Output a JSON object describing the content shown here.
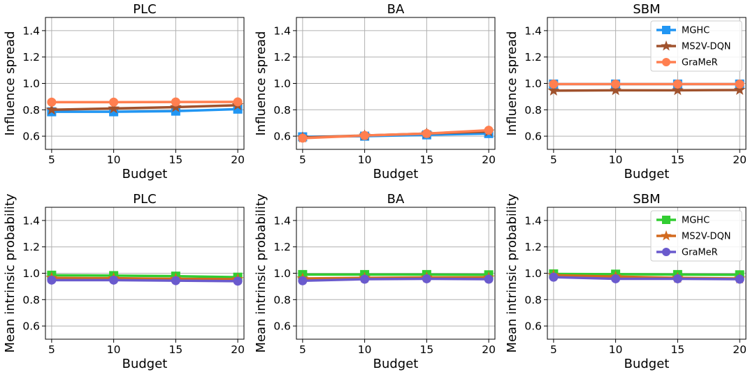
{
  "chart_data": [
    {
      "type": "line",
      "title": "PLC",
      "xlabel": "Budget",
      "ylabel": "Influence spread",
      "x": [
        5,
        10,
        15,
        20
      ],
      "xticks": [
        5,
        10,
        15,
        20
      ],
      "xlim": [
        4.5,
        20.5
      ],
      "ylim": [
        0.5,
        1.5
      ],
      "yticks": [
        "0.6",
        "0.8",
        "1.0",
        "1.2",
        "1.4"
      ],
      "grid": true,
      "legend": null,
      "series": [
        {
          "name": "MGHC",
          "values": [
            0.785,
            0.785,
            0.79,
            0.805
          ],
          "color": "#2196f3",
          "marker": "square"
        },
        {
          "name": "MS2V-DQN",
          "values": [
            0.8,
            0.81,
            0.82,
            0.835
          ],
          "color": "#a0522d",
          "marker": "star"
        },
        {
          "name": "GraMeR",
          "values": [
            0.858,
            0.858,
            0.859,
            0.86
          ],
          "color": "#ff7f50",
          "marker": "circle"
        }
      ]
    },
    {
      "type": "line",
      "title": "BA",
      "xlabel": "Budget",
      "ylabel": "Influence spread",
      "x": [
        5,
        10,
        15,
        20
      ],
      "xticks": [
        5,
        10,
        15,
        20
      ],
      "xlim": [
        4.5,
        20.5
      ],
      "ylim": [
        0.5,
        1.5
      ],
      "yticks": [
        "0.6",
        "0.8",
        "1.0",
        "1.2",
        "1.4"
      ],
      "grid": true,
      "legend": null,
      "series": [
        {
          "name": "MGHC",
          "values": [
            0.595,
            0.6,
            0.61,
            0.62
          ],
          "color": "#2196f3",
          "marker": "square"
        },
        {
          "name": "MS2V-DQN",
          "values": [
            0.59,
            0.605,
            0.62,
            0.635
          ],
          "color": "#a0522d",
          "marker": "star"
        },
        {
          "name": "GraMeR",
          "values": [
            0.585,
            0.605,
            0.62,
            0.645
          ],
          "color": "#ff7f50",
          "marker": "circle"
        }
      ]
    },
    {
      "type": "line",
      "title": "SBM",
      "xlabel": "Budget",
      "ylabel": "Influence spread",
      "x": [
        5,
        10,
        15,
        20
      ],
      "xticks": [
        5,
        10,
        15,
        20
      ],
      "xlim": [
        4.5,
        20.5
      ],
      "ylim": [
        0.5,
        1.5
      ],
      "yticks": [
        "0.6",
        "0.8",
        "1.0",
        "1.2",
        "1.4"
      ],
      "grid": true,
      "legend": "top-right",
      "series": [
        {
          "name": "MGHC",
          "values": [
            0.995,
            0.995,
            0.995,
            0.995
          ],
          "color": "#2196f3",
          "marker": "square"
        },
        {
          "name": "MS2V-DQN",
          "values": [
            0.945,
            0.948,
            0.948,
            0.95
          ],
          "color": "#a0522d",
          "marker": "star"
        },
        {
          "name": "GraMeR",
          "values": [
            0.995,
            0.995,
            0.995,
            0.995
          ],
          "color": "#ff7f50",
          "marker": "circle"
        }
      ]
    },
    {
      "type": "line",
      "title": "PLC",
      "xlabel": "Budget",
      "ylabel": "Mean intrinsic probability",
      "x": [
        5,
        10,
        15,
        20
      ],
      "xticks": [
        5,
        10,
        15,
        20
      ],
      "xlim": [
        4.5,
        20.5
      ],
      "ylim": [
        0.5,
        1.5
      ],
      "yticks": [
        "0.6",
        "0.8",
        "1.0",
        "1.2",
        "1.4"
      ],
      "grid": true,
      "legend": null,
      "series": [
        {
          "name": "MGHC",
          "values": [
            0.985,
            0.982,
            0.978,
            0.97
          ],
          "color": "#32cd32",
          "marker": "square"
        },
        {
          "name": "MS2V-DQN",
          "values": [
            0.965,
            0.962,
            0.958,
            0.955
          ],
          "color": "#d2691e",
          "marker": "star"
        },
        {
          "name": "GraMeR",
          "values": [
            0.948,
            0.948,
            0.944,
            0.94
          ],
          "color": "#6a5acd",
          "marker": "circle"
        }
      ]
    },
    {
      "type": "line",
      "title": "BA",
      "xlabel": "Budget",
      "ylabel": "Mean intrinsic probability",
      "x": [
        5,
        10,
        15,
        20
      ],
      "xticks": [
        5,
        10,
        15,
        20
      ],
      "xlim": [
        4.5,
        20.5
      ],
      "ylim": [
        0.5,
        1.5
      ],
      "yticks": [
        "0.6",
        "0.8",
        "1.0",
        "1.2",
        "1.4"
      ],
      "grid": true,
      "legend": null,
      "series": [
        {
          "name": "MGHC",
          "values": [
            0.99,
            0.99,
            0.99,
            0.988
          ],
          "color": "#32cd32",
          "marker": "square"
        },
        {
          "name": "MS2V-DQN",
          "values": [
            0.96,
            0.965,
            0.968,
            0.968
          ],
          "color": "#d2691e",
          "marker": "star"
        },
        {
          "name": "GraMeR",
          "values": [
            0.943,
            0.955,
            0.958,
            0.955
          ],
          "color": "#6a5acd",
          "marker": "circle"
        }
      ]
    },
    {
      "type": "line",
      "title": "SBM",
      "xlabel": "Budget",
      "ylabel": "Mean intrinsic probability",
      "x": [
        5,
        10,
        15,
        20
      ],
      "xticks": [
        5,
        10,
        15,
        20
      ],
      "xlim": [
        4.5,
        20.5
      ],
      "ylim": [
        0.5,
        1.5
      ],
      "yticks": [
        "0.6",
        "0.8",
        "1.0",
        "1.2",
        "1.4"
      ],
      "grid": true,
      "legend": "top-right",
      "series": [
        {
          "name": "MGHC",
          "values": [
            0.995,
            0.993,
            0.99,
            0.988
          ],
          "color": "#32cd32",
          "marker": "square"
        },
        {
          "name": "MS2V-DQN",
          "values": [
            0.985,
            0.975,
            0.965,
            0.96
          ],
          "color": "#d2691e",
          "marker": "star"
        },
        {
          "name": "GraMeR",
          "values": [
            0.97,
            0.958,
            0.958,
            0.955
          ],
          "color": "#6a5acd",
          "marker": "circle"
        }
      ]
    }
  ]
}
